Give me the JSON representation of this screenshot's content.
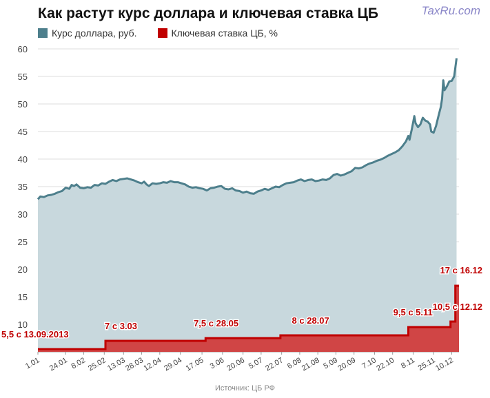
{
  "header": {
    "title": "Как растут курс доллара и ключевая ставка ЦБ",
    "watermark": "TaxRu.com"
  },
  "legend": {
    "usd": "Курс доллара, руб.",
    "rate": "Ключевая ставка ЦБ, %"
  },
  "footer": {
    "source": "Источник: ЦБ РФ"
  },
  "colors": {
    "usd_line": "#4d7f8c",
    "usd_fill": "#c8d8dd",
    "rate_line": "#c00000",
    "rate_fill": "#d04545"
  },
  "chart_data": {
    "type": "line",
    "ylim": [
      5,
      60
    ],
    "yticks": [
      60,
      55,
      50,
      45,
      40,
      35,
      30,
      25,
      20,
      15,
      10
    ],
    "xlim": [
      0,
      349
    ],
    "xticks": [
      {
        "label": "1.01",
        "day": 0
      },
      {
        "label": "24.01",
        "day": 23
      },
      {
        "label": "8.02",
        "day": 38
      },
      {
        "label": "25.02",
        "day": 55
      },
      {
        "label": "13.03",
        "day": 71
      },
      {
        "label": "28.03",
        "day": 86
      },
      {
        "label": "12.04",
        "day": 101
      },
      {
        "label": "29.04",
        "day": 118
      },
      {
        "label": "17.05",
        "day": 136
      },
      {
        "label": "3.06",
        "day": 153
      },
      {
        "label": "20.06",
        "day": 170
      },
      {
        "label": "5.07",
        "day": 185
      },
      {
        "label": "22.07",
        "day": 202
      },
      {
        "label": "6.08",
        "day": 217
      },
      {
        "label": "21.08",
        "day": 232
      },
      {
        "label": "5.09",
        "day": 247
      },
      {
        "label": "20.09",
        "day": 262
      },
      {
        "label": "7.10",
        "day": 279
      },
      {
        "label": "22.10",
        "day": 294
      },
      {
        "label": "8.11",
        "day": 311
      },
      {
        "label": "25.11",
        "day": 328
      },
      {
        "label": "10.12",
        "day": 343
      }
    ],
    "series": [
      {
        "name": "Курс доллара, руб.",
        "points": [
          [
            0,
            32.7
          ],
          [
            2,
            33.2
          ],
          [
            5,
            33.1
          ],
          [
            8,
            33.4
          ],
          [
            11,
            33.5
          ],
          [
            14,
            33.7
          ],
          [
            17,
            34.0
          ],
          [
            20,
            34.2
          ],
          [
            23,
            34.8
          ],
          [
            26,
            34.6
          ],
          [
            28,
            35.3
          ],
          [
            30,
            35.1
          ],
          [
            32,
            35.4
          ],
          [
            35,
            34.8
          ],
          [
            38,
            34.7
          ],
          [
            41,
            34.9
          ],
          [
            44,
            34.8
          ],
          [
            47,
            35.3
          ],
          [
            50,
            35.2
          ],
          [
            53,
            35.6
          ],
          [
            56,
            35.5
          ],
          [
            59,
            35.9
          ],
          [
            62,
            36.2
          ],
          [
            65,
            36.0
          ],
          [
            68,
            36.3
          ],
          [
            71,
            36.4
          ],
          [
            74,
            36.5
          ],
          [
            77,
            36.3
          ],
          [
            80,
            36.1
          ],
          [
            83,
            35.8
          ],
          [
            86,
            35.6
          ],
          [
            88,
            35.9
          ],
          [
            90,
            35.4
          ],
          [
            92,
            35.1
          ],
          [
            95,
            35.6
          ],
          [
            98,
            35.5
          ],
          [
            101,
            35.6
          ],
          [
            104,
            35.8
          ],
          [
            107,
            35.7
          ],
          [
            110,
            36.0
          ],
          [
            113,
            35.8
          ],
          [
            116,
            35.8
          ],
          [
            119,
            35.6
          ],
          [
            122,
            35.4
          ],
          [
            125,
            35.0
          ],
          [
            128,
            34.8
          ],
          [
            131,
            34.9
          ],
          [
            134,
            34.7
          ],
          [
            137,
            34.6
          ],
          [
            140,
            34.3
          ],
          [
            143,
            34.7
          ],
          [
            146,
            34.8
          ],
          [
            149,
            35.0
          ],
          [
            152,
            35.1
          ],
          [
            155,
            34.6
          ],
          [
            158,
            34.5
          ],
          [
            161,
            34.7
          ],
          [
            164,
            34.3
          ],
          [
            167,
            34.2
          ],
          [
            170,
            33.9
          ],
          [
            173,
            34.1
          ],
          [
            176,
            33.8
          ],
          [
            179,
            33.7
          ],
          [
            182,
            34.1
          ],
          [
            185,
            34.3
          ],
          [
            188,
            34.6
          ],
          [
            191,
            34.4
          ],
          [
            194,
            34.7
          ],
          [
            197,
            35.0
          ],
          [
            200,
            34.9
          ],
          [
            203,
            35.3
          ],
          [
            206,
            35.6
          ],
          [
            209,
            35.7
          ],
          [
            212,
            35.8
          ],
          [
            215,
            36.1
          ],
          [
            218,
            36.3
          ],
          [
            221,
            36.0
          ],
          [
            224,
            36.2
          ],
          [
            227,
            36.3
          ],
          [
            230,
            36.0
          ],
          [
            233,
            36.1
          ],
          [
            236,
            36.3
          ],
          [
            239,
            36.2
          ],
          [
            242,
            36.5
          ],
          [
            245,
            37.1
          ],
          [
            248,
            37.3
          ],
          [
            251,
            37.0
          ],
          [
            254,
            37.2
          ],
          [
            257,
            37.5
          ],
          [
            260,
            37.8
          ],
          [
            263,
            38.4
          ],
          [
            266,
            38.3
          ],
          [
            269,
            38.5
          ],
          [
            272,
            38.9
          ],
          [
            275,
            39.2
          ],
          [
            278,
            39.4
          ],
          [
            281,
            39.7
          ],
          [
            284,
            39.9
          ],
          [
            287,
            40.2
          ],
          [
            290,
            40.6
          ],
          [
            293,
            40.9
          ],
          [
            296,
            41.2
          ],
          [
            299,
            41.6
          ],
          [
            302,
            42.3
          ],
          [
            305,
            43.2
          ],
          [
            307,
            44.2
          ],
          [
            308,
            43.5
          ],
          [
            310,
            45.5
          ],
          [
            312,
            47.8
          ],
          [
            313,
            46.5
          ],
          [
            315,
            45.8
          ],
          [
            317,
            46.3
          ],
          [
            319,
            47.5
          ],
          [
            321,
            47.0
          ],
          [
            323,
            46.8
          ],
          [
            325,
            46.3
          ],
          [
            326,
            45.0
          ],
          [
            328,
            44.8
          ],
          [
            330,
            46.0
          ],
          [
            332,
            47.8
          ],
          [
            334,
            49.5
          ],
          [
            335,
            51.0
          ],
          [
            336,
            54.3
          ],
          [
            337,
            52.5
          ],
          [
            339,
            53.2
          ],
          [
            341,
            54.1
          ],
          [
            343,
            54.2
          ],
          [
            345,
            55.0
          ],
          [
            347,
            58.3
          ]
        ]
      },
      {
        "name": "Ключевая ставка ЦБ, %",
        "points": [
          [
            0,
            5.5
          ],
          [
            56,
            5.5
          ],
          [
            56,
            7.0
          ],
          [
            139,
            7.0
          ],
          [
            139,
            7.5
          ],
          [
            201,
            7.5
          ],
          [
            201,
            8.0
          ],
          [
            307,
            8.0
          ],
          [
            307,
            9.5
          ],
          [
            342,
            9.5
          ],
          [
            342,
            10.5
          ],
          [
            346,
            10.5
          ],
          [
            346,
            17.0
          ],
          [
            349,
            17.0
          ]
        ]
      }
    ],
    "annotations": [
      {
        "text": "5,5 с 13.09.2013",
        "day": 6,
        "value": 5.5
      },
      {
        "text": "7 с 3.03",
        "day": 62,
        "value": 7.0
      },
      {
        "text": "7,5 с 28.05",
        "day": 142,
        "value": 7.5
      },
      {
        "text": "8 с 28.07",
        "day": 210,
        "value": 8.0
      },
      {
        "text": "9,5 с 5.11",
        "day": 308,
        "value": 9.5
      },
      {
        "text": "10,5 с 12.12",
        "day": 344,
        "value": 10.5
      },
      {
        "text": "17 с 16.12",
        "day": 346,
        "value": 17.0
      }
    ]
  }
}
